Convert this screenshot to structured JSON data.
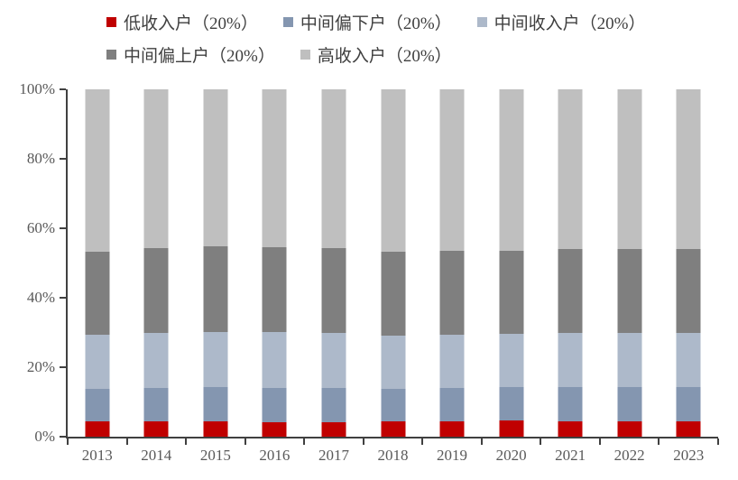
{
  "chart_data": {
    "type": "bar",
    "variant": "stacked-100-percent",
    "title": "",
    "xlabel": "",
    "ylabel": "",
    "ylim": [
      0,
      100
    ],
    "grid": false,
    "legend_position": "top-left",
    "categories": [
      "2013",
      "2014",
      "2015",
      "2016",
      "2017",
      "2018",
      "2019",
      "2020",
      "2021",
      "2022",
      "2023"
    ],
    "y_ticks": [
      {
        "value": 0,
        "label": "0%"
      },
      {
        "value": 20,
        "label": "20%"
      },
      {
        "value": 40,
        "label": "40%"
      },
      {
        "value": 60,
        "label": "60%"
      },
      {
        "value": 80,
        "label": "80%"
      },
      {
        "value": 100,
        "label": "100%"
      }
    ],
    "series": [
      {
        "name": "低收入户（20%）",
        "color": "#C00000",
        "values": [
          4.3,
          4.3,
          4.3,
          4.2,
          4.2,
          4.3,
          4.5,
          4.6,
          4.5,
          4.4,
          4.4
        ]
      },
      {
        "name": "中间偏下户（20%）",
        "color": "#8496B0",
        "values": [
          9.5,
          9.8,
          9.9,
          9.9,
          9.8,
          9.5,
          9.6,
          9.6,
          9.9,
          9.8,
          9.9
        ]
      },
      {
        "name": "中间收入户（20%）",
        "color": "#ADB9CA",
        "values": [
          15.5,
          15.9,
          16.0,
          16.0,
          15.9,
          15.3,
          15.3,
          15.3,
          15.6,
          15.6,
          15.5
        ]
      },
      {
        "name": "中间偏上户（20%）",
        "color": "#7F7F7F",
        "values": [
          24.0,
          24.2,
          24.5,
          24.5,
          24.4,
          24.1,
          24.0,
          23.9,
          24.1,
          24.2,
          24.2
        ]
      },
      {
        "name": "高收入户（20%）",
        "color": "#BFBFBF",
        "values": [
          46.7,
          45.8,
          45.3,
          45.4,
          45.7,
          46.8,
          46.6,
          46.6,
          45.9,
          46.0,
          46.0
        ]
      }
    ],
    "legend_rows": [
      [
        0,
        1,
        2
      ],
      [
        3,
        4
      ]
    ]
  },
  "style": {
    "axis_line_color": "#404040",
    "axis_text_color": "#595959",
    "legend_text_color": "#3f3f3f",
    "background": "#ffffff"
  }
}
